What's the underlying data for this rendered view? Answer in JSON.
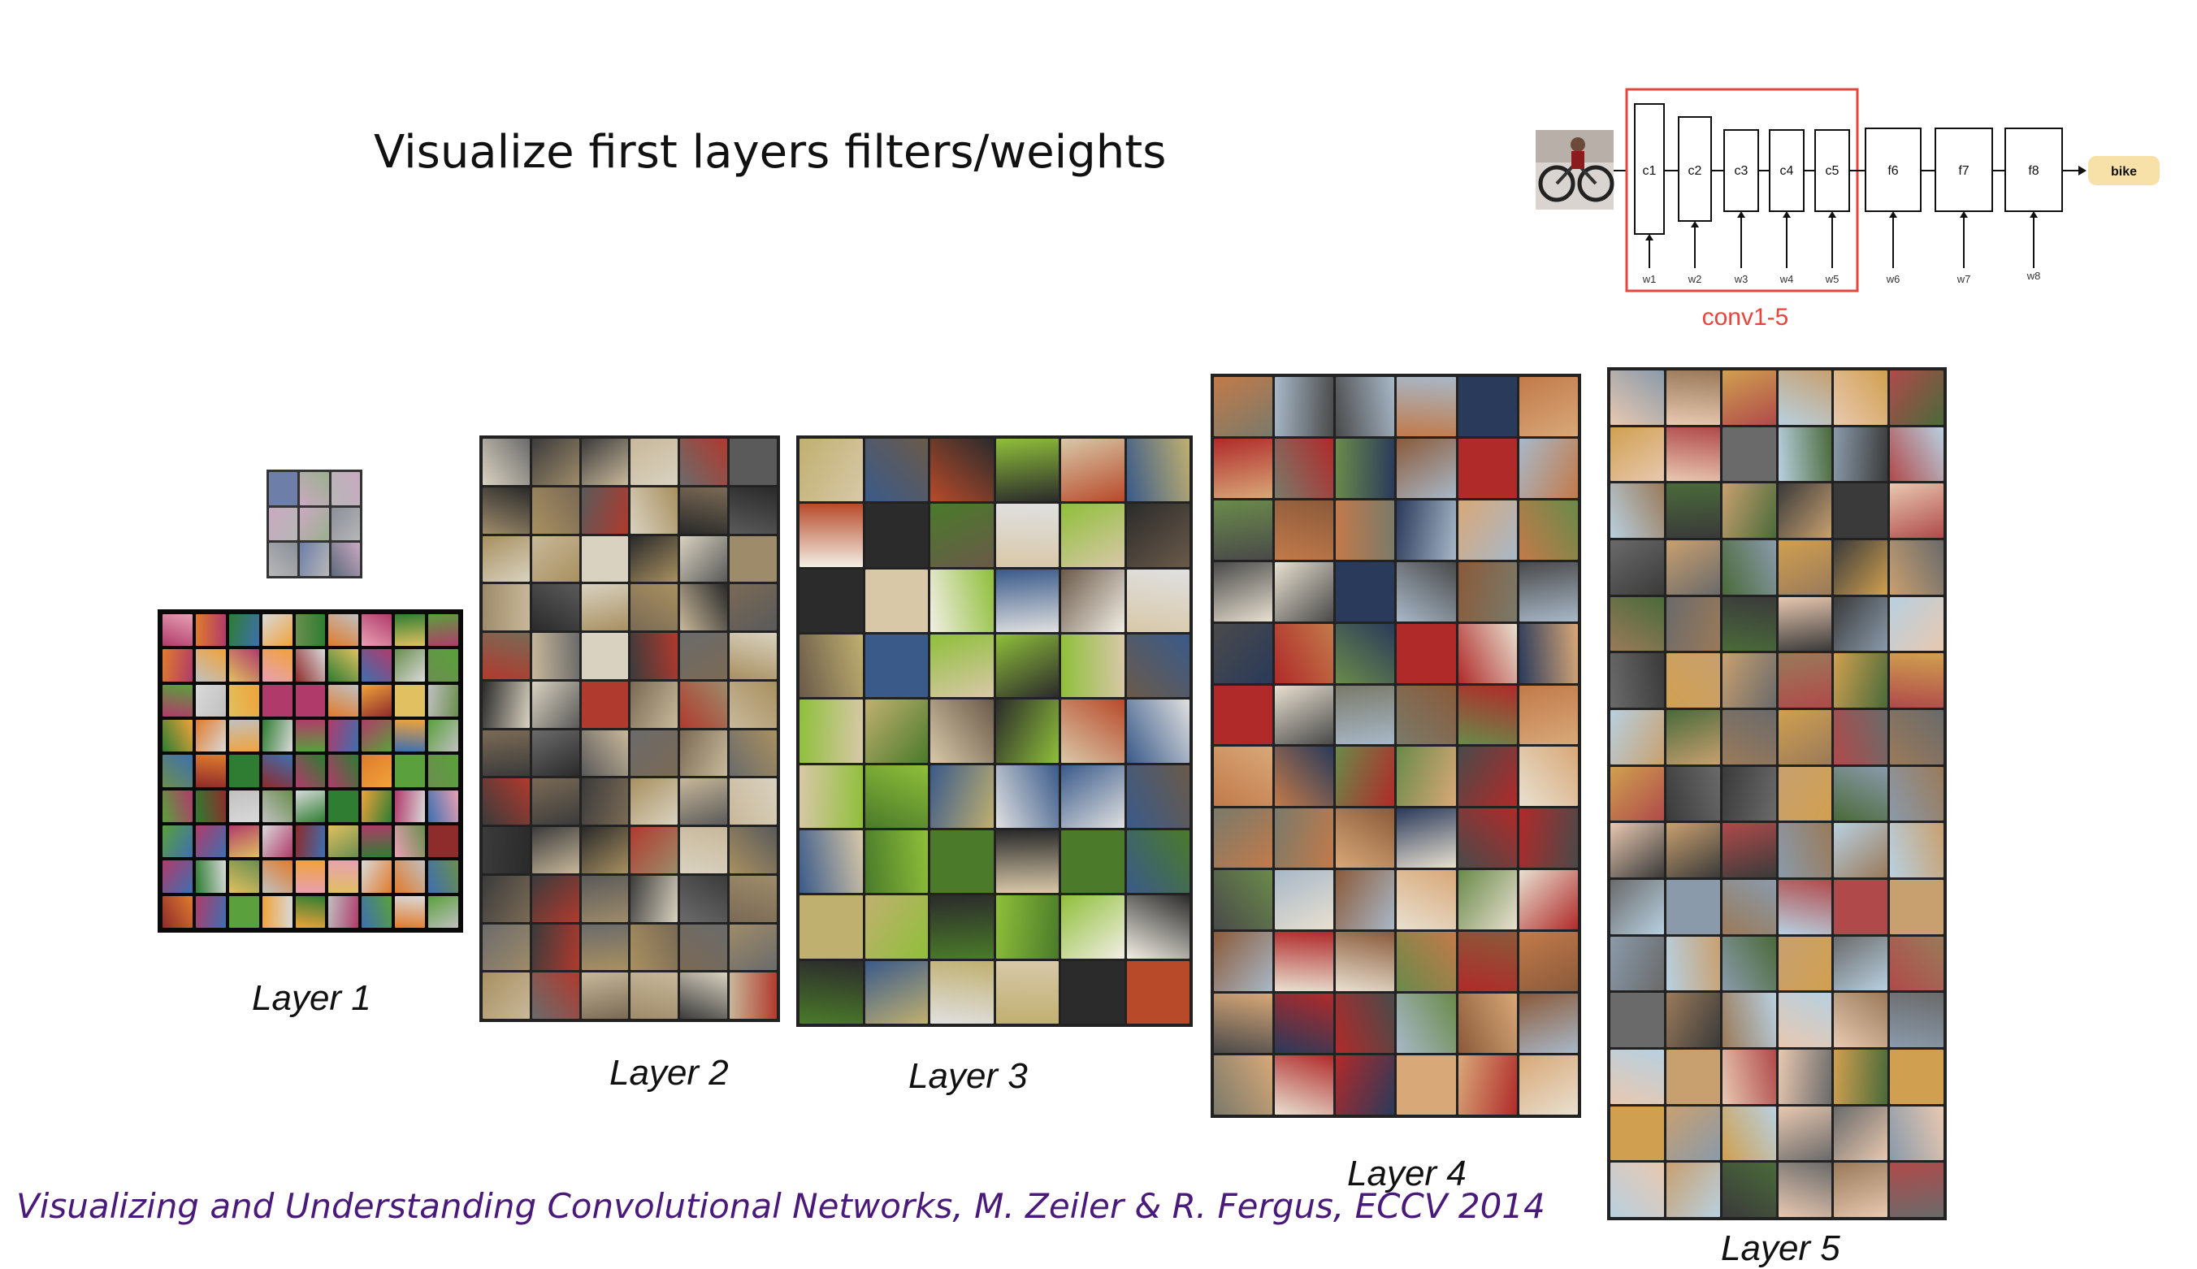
{
  "slide": {
    "title": "Visualize first layers filters/weights",
    "citation": "Visualizing and Understanding Convolutional Networks, M. Zeiler & R. Fergus, ECCV 2014"
  },
  "diagram": {
    "conv_layers": [
      "c1",
      "c2",
      "c3",
      "c4",
      "c5"
    ],
    "fc_layers": [
      "f6",
      "f7",
      "f8"
    ],
    "weights": [
      "w1",
      "w2",
      "w3",
      "w4",
      "w5",
      "w6",
      "w7",
      "w8"
    ],
    "output_label": "bike",
    "highlight_label": "conv1-5",
    "highlight_color": "#e8453c",
    "output_color": "#f7e1a8"
  },
  "layers": [
    {
      "label": "Layer 1"
    },
    {
      "label": "Layer 2"
    },
    {
      "label": "Layer 3"
    },
    {
      "label": "Layer 4"
    },
    {
      "label": "Layer 5"
    }
  ]
}
